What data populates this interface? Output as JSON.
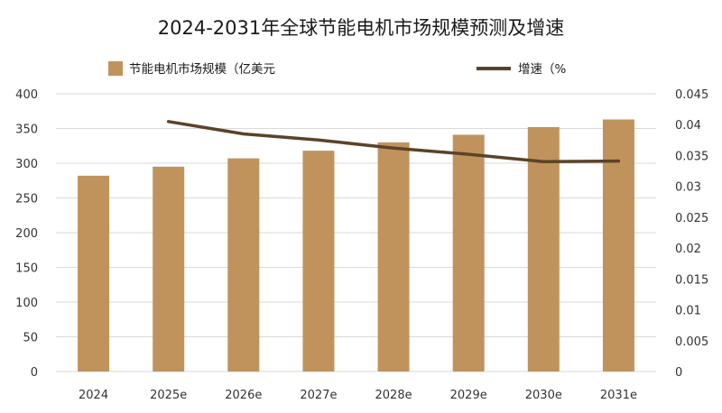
{
  "chart_data": {
    "type": "bar",
    "title": "2024-2031年全球节能电机市场规模预测及增速",
    "categories": [
      "2024",
      "2025e",
      "2026e",
      "2027e",
      "2028e",
      "2029e",
      "2030e",
      "2031e"
    ],
    "series": [
      {
        "name": "节能电机市场规模（亿美元",
        "type": "bar",
        "axis": "left",
        "color": "#c0935d",
        "values": [
          282,
          295,
          307,
          318,
          330,
          341,
          352,
          363
        ]
      },
      {
        "name": "增速（%",
        "type": "line",
        "axis": "right",
        "color": "#5b4328",
        "values": [
          null,
          0.0405,
          0.0385,
          0.0375,
          0.0362,
          0.0352,
          0.034,
          0.0341
        ]
      }
    ],
    "y_left": {
      "min": 0,
      "max": 400,
      "ticks": [
        "0",
        "50",
        "100",
        "150",
        "200",
        "250",
        "300",
        "350",
        "400"
      ]
    },
    "y_right": {
      "min": 0,
      "max": 0.045,
      "ticks": [
        "0",
        "0.005",
        "0.01",
        "0.015",
        "0.02",
        "0.025",
        "0.03",
        "0.035",
        "0.04",
        "0.045"
      ]
    },
    "grid": true,
    "legend_position": "top"
  }
}
